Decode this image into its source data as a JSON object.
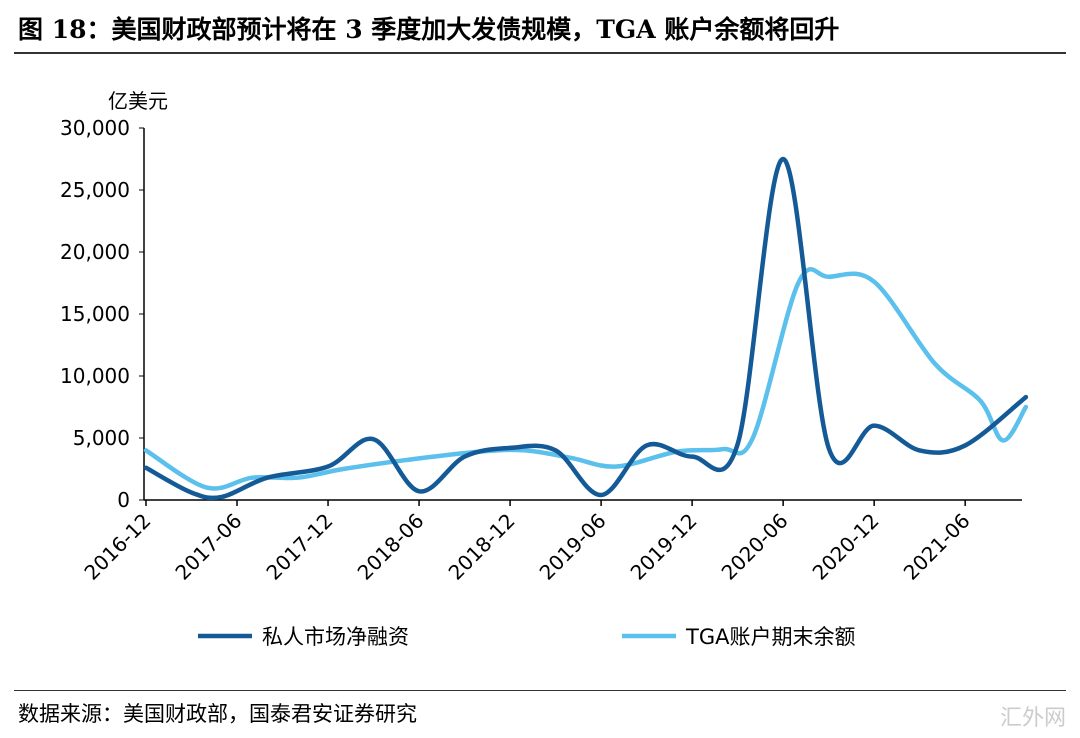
{
  "title": "图 18：美国财政部预计将在 3 季度加大发债规模，TGA 账户余额将回升",
  "source": "数据来源：美国财政部，国泰君安证券研究",
  "watermark": "汇外网",
  "chart_data": {
    "type": "line",
    "ylabel": "亿美元",
    "ylim": [
      0,
      30000
    ],
    "yticks": [
      0,
      5000,
      10000,
      15000,
      20000,
      25000,
      30000
    ],
    "ytick_labels": [
      "0",
      "5,000",
      "10,000",
      "15,000",
      "20,000",
      "25,000",
      "30,000"
    ],
    "x_unit": "months since 2016-12",
    "xlim": [
      0,
      58
    ],
    "xticks": [
      0,
      6,
      12,
      18,
      24,
      30,
      36,
      42,
      48,
      54
    ],
    "xtick_labels": [
      "2016-12",
      "2017-06",
      "2017-12",
      "2018-06",
      "2018-12",
      "2019-06",
      "2019-12",
      "2020-06",
      "2020-12",
      "2021-06"
    ],
    "legend_position": "bottom",
    "grid": false,
    "series": [
      {
        "name": "私人市场净融资",
        "color": "#135A96",
        "x": [
          0,
          3,
          5,
          8,
          12,
          15,
          18,
          21,
          24,
          27,
          30,
          33,
          36,
          39,
          42,
          45,
          48,
          51,
          54,
          58
        ],
        "y": [
          2600,
          600,
          250,
          1800,
          2700,
          4900,
          700,
          3500,
          4200,
          4000,
          400,
          4400,
          3500,
          4500,
          27500,
          4200,
          6000,
          4000,
          4400,
          8300
        ]
      },
      {
        "name": "TGA账户期末余额",
        "color": "#5BC0EB",
        "x": [
          0,
          4,
          7,
          10,
          13,
          17,
          22,
          25,
          28,
          31,
          35,
          38,
          40,
          43,
          45,
          48,
          52,
          55,
          56.5,
          58
        ],
        "y": [
          4000,
          1000,
          1800,
          1800,
          2500,
          3200,
          3900,
          4000,
          3400,
          2700,
          3900,
          4100,
          5000,
          17500,
          18000,
          17600,
          11000,
          8000,
          4800,
          7500
        ]
      }
    ]
  }
}
